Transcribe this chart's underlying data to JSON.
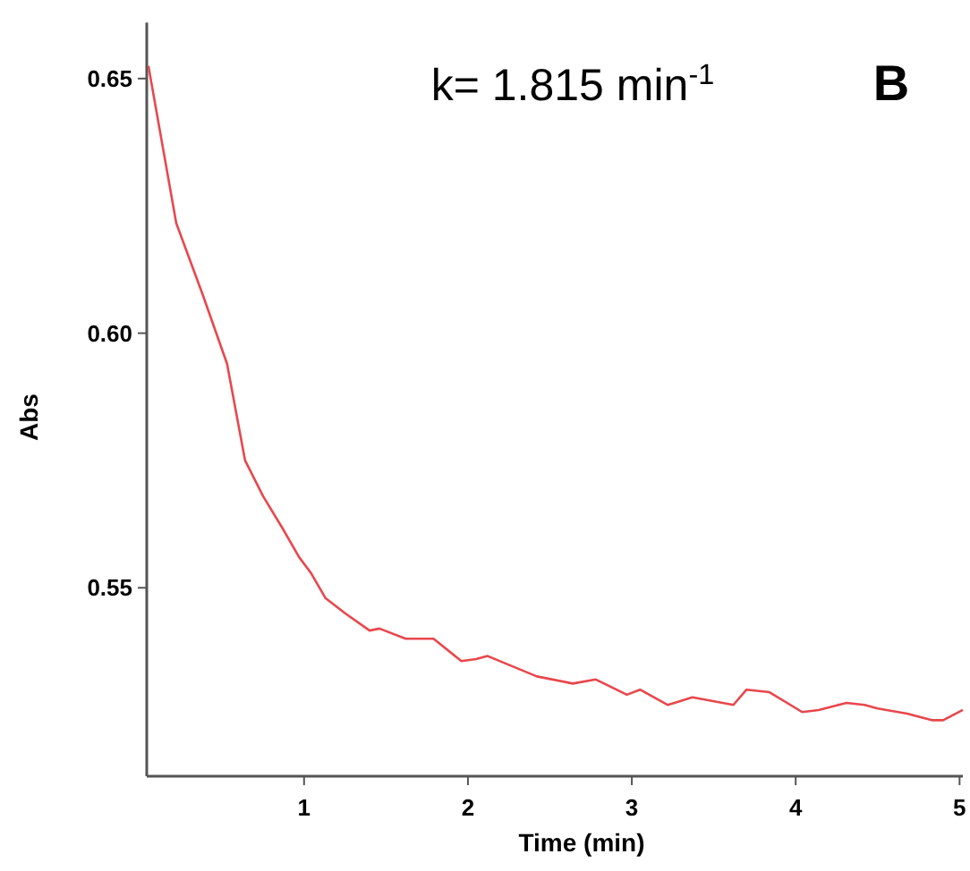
{
  "chart_data": {
    "type": "line",
    "xlabel": "Time (min)",
    "ylabel": "Abs",
    "annotations": [
      "k= 1.815 min$^{-1}$",
      "B"
    ],
    "xlim": [
      0.04,
      5.02
    ],
    "ylim": [
      0.513,
      0.661
    ],
    "xticks": [
      1,
      2,
      3,
      4,
      5
    ],
    "yticks": [
      {
        "value": 0.55,
        "label": "0.55"
      },
      {
        "value": 0.6,
        "label": "0.60"
      },
      {
        "value": 0.65,
        "label": "0.65"
      }
    ],
    "grid": false,
    "series": [
      {
        "color": "#e8474c",
        "x": [
          0.05,
          0.22,
          0.38,
          0.53,
          0.64,
          0.75,
          0.87,
          0.97,
          1.04,
          1.13,
          1.25,
          1.4,
          1.46,
          1.62,
          1.79,
          1.96,
          2.05,
          2.12,
          2.42,
          2.64,
          2.78,
          2.97,
          3.05,
          3.22,
          3.37,
          3.62,
          3.7,
          3.84,
          4.04,
          4.14,
          4.31,
          4.42,
          4.5,
          4.68,
          4.83,
          4.9,
          5.02
        ],
        "values": [
          0.6525,
          0.6216,
          0.6077,
          0.594,
          0.575,
          0.568,
          0.5616,
          0.556,
          0.553,
          0.548,
          0.545,
          0.5416,
          0.542,
          0.54,
          0.54,
          0.5356,
          0.536,
          0.5366,
          0.5326,
          0.5312,
          0.532,
          0.529,
          0.53,
          0.527,
          0.5285,
          0.527,
          0.53,
          0.5295,
          0.5256,
          0.526,
          0.5274,
          0.527,
          0.5263,
          0.5253,
          0.524,
          0.524,
          0.526
        ]
      }
    ]
  }
}
